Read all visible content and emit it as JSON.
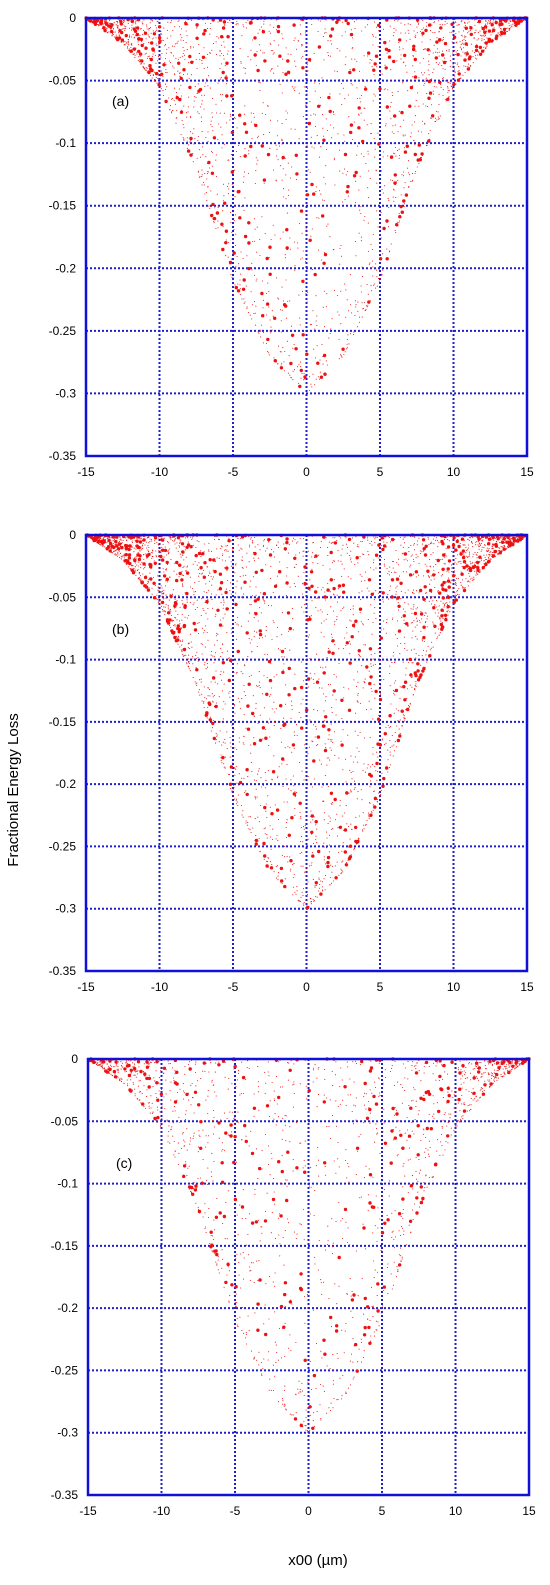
{
  "chart_data": {
    "type": "scatter",
    "layout": "three vertically stacked panels",
    "ylabel": "Fractional Energy Loss",
    "xlabel": "x00 (µm)",
    "xlim": [
      -15,
      15
    ],
    "ylim": [
      -0.35,
      0
    ],
    "x_ticks": [
      -15,
      -10,
      -5,
      0,
      5,
      10,
      15
    ],
    "x_tick_labels": [
      "-15",
      "-10",
      "-5",
      "0",
      "5",
      "10",
      "15"
    ],
    "y_ticks": [
      0,
      -0.05,
      -0.1,
      -0.15,
      -0.2,
      -0.25,
      -0.3,
      -0.35
    ],
    "y_tick_labels": [
      "0",
      "-0.05",
      "-0.1",
      "-0.15",
      "-0.2",
      "-0.25",
      "-0.3",
      "-0.35"
    ],
    "grid": "dotted, at every tick",
    "marker": "red dots (large and small)",
    "envelope": {
      "description": "points fill a bell-shaped region between y = 0 and a lower boundary",
      "x": [
        -15,
        -12.5,
        -10,
        -7.5,
        -5,
        -2.5,
        0,
        2.5,
        5,
        7.5,
        10,
        12.5,
        15
      ],
      "y_min": [
        0,
        -0.02,
        -0.055,
        -0.12,
        -0.21,
        -0.27,
        -0.3,
        -0.27,
        -0.21,
        -0.12,
        -0.055,
        -0.02,
        0
      ]
    },
    "panels": [
      {
        "label": "(a)",
        "points_shown": "approx. 2500"
      },
      {
        "label": "(b)",
        "points_shown": "approx. 3500"
      },
      {
        "label": "(c)",
        "points_shown": "approx. 1800"
      }
    ]
  },
  "colors": {
    "frame": "#1010d8",
    "grid": "#1f1fd0",
    "points": "#ee1111",
    "background": "#ffffff"
  }
}
